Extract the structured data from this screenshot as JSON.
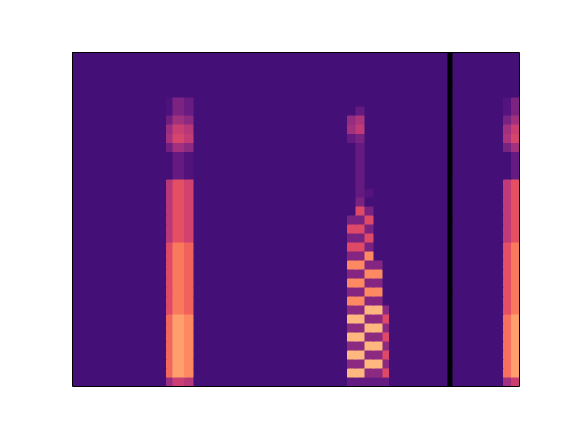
{
  "chart_data": {
    "type": "heatmap",
    "color": "magma",
    "tick_labels": false,
    "xlim": [
      0,
      100
    ],
    "ylim": [
      0,
      37
    ],
    "color_range": [
      0,
      1
    ],
    "x": [
      0,
      21,
      22.5,
      25,
      27.2,
      61.5,
      63.5,
      65.5,
      67.5,
      69.5,
      71,
      84,
      85,
      96.4,
      98.2,
      100
    ],
    "y": [
      0,
      1,
      2,
      3,
      4,
      5,
      6,
      7,
      8,
      9,
      10,
      11,
      12,
      13,
      14,
      15,
      16,
      17,
      18,
      19,
      20,
      21,
      22,
      23,
      24,
      25,
      26,
      27,
      28,
      29,
      30,
      31,
      32,
      33,
      34,
      35,
      36,
      37
    ],
    "cells": [
      [
        0.22,
        0.43,
        0.55,
        0.5,
        0.22,
        0.3,
        0.3,
        0.3,
        0.3,
        0.3,
        0.22,
        0,
        0.22,
        0.45,
        0.55
      ],
      [
        0.22,
        0.68,
        0.8,
        0.75,
        0.22,
        0.85,
        0.85,
        0.4,
        0.4,
        0.6,
        0.22,
        0,
        0.22,
        0.7,
        0.8
      ],
      [
        0.22,
        0.68,
        0.8,
        0.75,
        0.22,
        0.4,
        0.4,
        0.85,
        0.85,
        0.4,
        0.22,
        0,
        0.22,
        0.7,
        0.8
      ],
      [
        0.22,
        0.68,
        0.8,
        0.75,
        0.22,
        0.85,
        0.85,
        0.4,
        0.4,
        0.6,
        0.22,
        0,
        0.22,
        0.7,
        0.8
      ],
      [
        0.22,
        0.68,
        0.8,
        0.75,
        0.22,
        0.4,
        0.4,
        0.85,
        0.85,
        0.4,
        0.22,
        0,
        0.22,
        0.7,
        0.8
      ],
      [
        0.22,
        0.68,
        0.8,
        0.75,
        0.22,
        0.85,
        0.85,
        0.4,
        0.4,
        0.6,
        0.22,
        0,
        0.22,
        0.7,
        0.8
      ],
      [
        0.22,
        0.68,
        0.8,
        0.75,
        0.22,
        0.4,
        0.4,
        0.85,
        0.85,
        0.4,
        0.22,
        0,
        0.22,
        0.7,
        0.8
      ],
      [
        0.22,
        0.68,
        0.8,
        0.75,
        0.22,
        0.85,
        0.85,
        0.4,
        0.4,
        0.6,
        0.22,
        0,
        0.22,
        0.7,
        0.8
      ],
      [
        0.22,
        0.6,
        0.72,
        0.67,
        0.22,
        0.4,
        0.4,
        0.85,
        0.85,
        0.4,
        0.22,
        0,
        0.22,
        0.62,
        0.72
      ],
      [
        0.22,
        0.6,
        0.72,
        0.67,
        0.22,
        0.75,
        0.75,
        0.38,
        0.38,
        0.22,
        0.22,
        0,
        0.22,
        0.62,
        0.72
      ],
      [
        0.22,
        0.6,
        0.72,
        0.67,
        0.22,
        0.38,
        0.38,
        0.75,
        0.75,
        0.22,
        0.22,
        0,
        0.22,
        0.62,
        0.72
      ],
      [
        0.22,
        0.6,
        0.72,
        0.67,
        0.22,
        0.75,
        0.75,
        0.38,
        0.38,
        0.22,
        0.22,
        0,
        0.22,
        0.62,
        0.72
      ],
      [
        0.22,
        0.6,
        0.72,
        0.67,
        0.22,
        0.38,
        0.38,
        0.75,
        0.75,
        0.22,
        0.22,
        0,
        0.22,
        0.62,
        0.72
      ],
      [
        0.22,
        0.6,
        0.72,
        0.67,
        0.22,
        0.75,
        0.75,
        0.38,
        0.38,
        0.22,
        0.22,
        0,
        0.22,
        0.62,
        0.72
      ],
      [
        0.22,
        0.6,
        0.72,
        0.67,
        0.22,
        0.38,
        0.38,
        0.75,
        0.22,
        0.22,
        0.22,
        0,
        0.22,
        0.62,
        0.72
      ],
      [
        0.22,
        0.6,
        0.72,
        0.67,
        0.22,
        0.6,
        0.6,
        0.35,
        0.22,
        0.22,
        0.22,
        0,
        0.22,
        0.62,
        0.72
      ],
      [
        0.22,
        0.5,
        0.62,
        0.57,
        0.22,
        0.35,
        0.35,
        0.6,
        0.22,
        0.22,
        0.22,
        0,
        0.22,
        0.52,
        0.62
      ],
      [
        0.22,
        0.5,
        0.62,
        0.57,
        0.22,
        0.6,
        0.6,
        0.35,
        0.22,
        0.22,
        0.22,
        0,
        0.22,
        0.52,
        0.62
      ],
      [
        0.22,
        0.5,
        0.62,
        0.57,
        0.22,
        0.35,
        0.35,
        0.6,
        0.22,
        0.22,
        0.22,
        0,
        0.22,
        0.52,
        0.62
      ],
      [
        0.22,
        0.5,
        0.62,
        0.57,
        0.22,
        0.22,
        0.6,
        0.35,
        0.22,
        0.22,
        0.22,
        0,
        0.22,
        0.52,
        0.62
      ],
      [
        0.22,
        0.5,
        0.62,
        0.57,
        0.22,
        0.22,
        0.35,
        0.22,
        0.22,
        0.22,
        0.22,
        0,
        0.22,
        0.52,
        0.62
      ],
      [
        0.22,
        0.5,
        0.62,
        0.57,
        0.22,
        0.22,
        0.3,
        0.26,
        0.22,
        0.22,
        0.22,
        0,
        0.22,
        0.52,
        0.62
      ],
      [
        0.22,
        0.5,
        0.62,
        0.57,
        0.22,
        0.22,
        0.3,
        0.22,
        0.22,
        0.22,
        0.22,
        0,
        0.22,
        0.52,
        0.62
      ],
      [
        0.22,
        0.22,
        0.3,
        0.25,
        0.22,
        0.22,
        0.3,
        0.22,
        0.22,
        0.22,
        0.22,
        0,
        0.22,
        0.22,
        0.3
      ],
      [
        0.22,
        0.22,
        0.3,
        0.25,
        0.22,
        0.22,
        0.3,
        0.22,
        0.22,
        0.22,
        0.22,
        0,
        0.22,
        0.22,
        0.3
      ],
      [
        0.22,
        0.22,
        0.3,
        0.25,
        0.22,
        0.22,
        0.3,
        0.22,
        0.22,
        0.22,
        0.22,
        0,
        0.22,
        0.22,
        0.3
      ],
      [
        0.22,
        0.33,
        0.45,
        0.4,
        0.22,
        0.22,
        0.3,
        0.22,
        0.22,
        0.22,
        0.22,
        0,
        0.22,
        0.35,
        0.45
      ],
      [
        0.22,
        0.46,
        0.58,
        0.53,
        0.22,
        0.3,
        0.35,
        0.22,
        0.22,
        0.22,
        0.22,
        0,
        0.22,
        0.48,
        0.58
      ],
      [
        0.22,
        0.43,
        0.55,
        0.5,
        0.22,
        0.45,
        0.52,
        0.22,
        0.22,
        0.22,
        0.22,
        0,
        0.22,
        0.45,
        0.55
      ],
      [
        0.22,
        0.33,
        0.45,
        0.4,
        0.22,
        0.42,
        0.48,
        0.22,
        0.22,
        0.22,
        0.22,
        0,
        0.22,
        0.35,
        0.45
      ],
      [
        0.22,
        0.24,
        0.36,
        0.31,
        0.22,
        0.22,
        0.3,
        0.22,
        0.22,
        0.22,
        0.22,
        0,
        0.22,
        0.26,
        0.36
      ],
      [
        0.22,
        0.24,
        0.36,
        0.31,
        0.22,
        0.22,
        0.22,
        0.22,
        0.22,
        0.22,
        0.22,
        0,
        0.22,
        0.26,
        0.36
      ],
      [
        0.22,
        0.22,
        0.22,
        0.22,
        0.22,
        0.22,
        0.22,
        0.22,
        0.22,
        0.22,
        0.22,
        0,
        0.22,
        0.22,
        0.22
      ],
      [
        0.22,
        0.22,
        0.22,
        0.22,
        0.22,
        0.22,
        0.22,
        0.22,
        0.22,
        0.22,
        0.22,
        0,
        0.22,
        0.22,
        0.22
      ],
      [
        0.22,
        0.22,
        0.22,
        0.22,
        0.22,
        0.22,
        0.22,
        0.22,
        0.22,
        0.22,
        0.22,
        0,
        0.22,
        0.22,
        0.22
      ],
      [
        0.22,
        0.22,
        0.22,
        0.22,
        0.22,
        0.22,
        0.22,
        0.22,
        0.22,
        0.22,
        0.22,
        0,
        0.22,
        0.22,
        0.22
      ],
      [
        0.22,
        0.22,
        0.22,
        0.22,
        0.22,
        0.22,
        0.22,
        0.22,
        0.22,
        0.22,
        0.22,
        0,
        0.22,
        0.22,
        0.22
      ]
    ]
  }
}
